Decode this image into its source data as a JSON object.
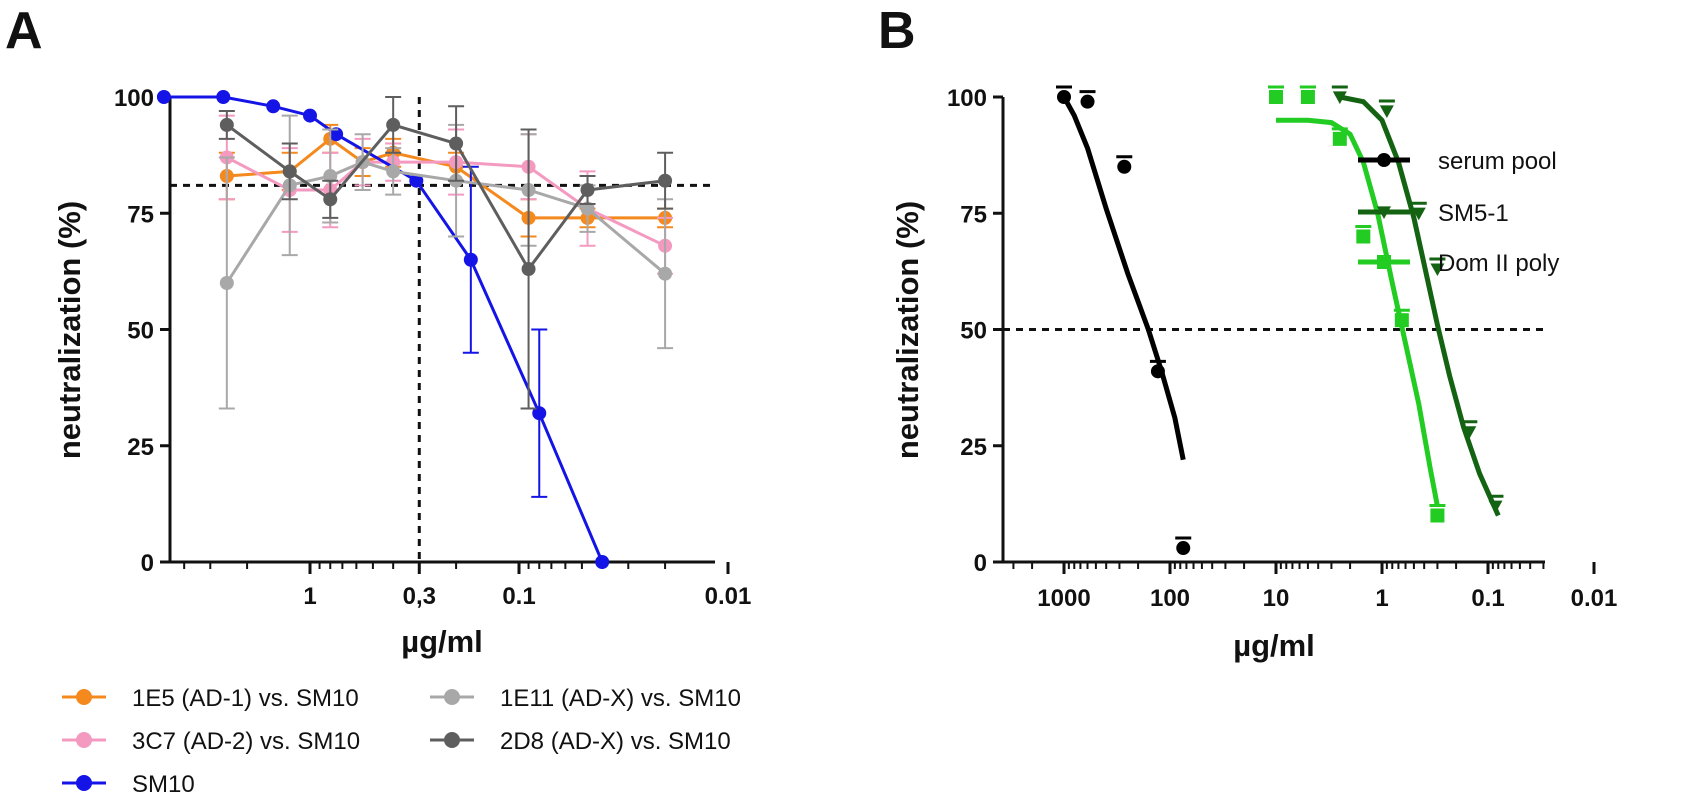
{
  "figure": {
    "panel_a_letter": "A",
    "panel_b_letter": "B"
  },
  "chart_data": [
    {
      "panel": "A",
      "type": "line",
      "xlabel": "µg/ml",
      "ylabel": "neutralization (%)",
      "x_scale": "log-reversed",
      "xlim": [
        10,
        0.01
      ],
      "ylim": [
        0,
        100
      ],
      "x_ticks": [
        {
          "value": 1,
          "label": "1"
        },
        {
          "value": 0.3,
          "label": "0,3"
        },
        {
          "value": 0.1,
          "label": "0.1"
        },
        {
          "value": 0.01,
          "label": "0.01"
        }
      ],
      "y_ticks": [
        {
          "value": 0,
          "label": "0"
        },
        {
          "value": 25,
          "label": "25"
        },
        {
          "value": 50,
          "label": "50"
        },
        {
          "value": 75,
          "label": "75"
        },
        {
          "value": 100,
          "label": "100"
        }
      ],
      "reference_lines": {
        "horizontal_y": 81,
        "vertical_x": 0.3
      },
      "series": [
        {
          "name": "1E5 (AD-1) vs. SM10",
          "color": "#f4891e",
          "x": [
            2.5,
            1.25,
            0.8,
            0.56,
            0.4,
            0.2,
            0.09,
            0.047,
            0.02
          ],
          "y": [
            83,
            84,
            91,
            86,
            88,
            85,
            74,
            74,
            74
          ],
          "err": [
            5,
            4,
            3,
            3,
            3,
            3,
            4,
            2,
            2
          ]
        },
        {
          "name": "3C7 (AD-2) vs. SM10",
          "color": "#f49ac1",
          "x": [
            2.5,
            1.25,
            0.8,
            0.56,
            0.4,
            0.2,
            0.09,
            0.047,
            0.02
          ],
          "y": [
            87,
            80,
            80,
            86,
            86,
            86,
            85,
            76,
            68
          ],
          "err": [
            9,
            9,
            8,
            5,
            4,
            7,
            7,
            8,
            6
          ]
        },
        {
          "name": "SM10",
          "color": "#1414e6",
          "x": [
            5,
            2.6,
            1.5,
            1.0,
            0.75,
            0.31,
            0.17,
            0.08,
            0.04
          ],
          "y": [
            100,
            100,
            98,
            96,
            92,
            82,
            65,
            32,
            0
          ],
          "err": [
            0,
            0,
            0,
            0,
            0,
            0,
            20,
            18,
            0
          ]
        },
        {
          "name": "1E11 (AD-X) vs. SM10",
          "color": "#a8a8a8",
          "x": [
            2.5,
            1.25,
            0.8,
            0.56,
            0.4,
            0.2,
            0.09,
            0.047,
            0.02
          ],
          "y": [
            60,
            81,
            83,
            86,
            84,
            82,
            80,
            76,
            62
          ],
          "err": [
            27,
            15,
            10,
            6,
            5,
            12,
            12,
            5,
            16
          ]
        },
        {
          "name": "2D8 (AD-X) vs. SM10",
          "color": "#5e5e5e",
          "x": [
            2.5,
            1.25,
            0.8,
            0.4,
            0.2,
            0.09,
            0.047,
            0.02
          ],
          "y": [
            94,
            84,
            78,
            94,
            90,
            63,
            80,
            82
          ],
          "err": [
            3,
            6,
            4,
            6,
            8,
            30,
            3,
            6
          ]
        }
      ],
      "legend": {
        "placement": "below-plot"
      }
    },
    {
      "panel": "B",
      "type": "scatter",
      "xlabel": "µg/ml",
      "ylabel": "neutralization (%)",
      "x_scale": "log-reversed",
      "xlim": [
        5000,
        0.01
      ],
      "ylim": [
        0,
        100
      ],
      "x_ticks": [
        {
          "value": 1000,
          "label": "1000"
        },
        {
          "value": 100,
          "label": "100"
        },
        {
          "value": 10,
          "label": "10"
        },
        {
          "value": 1,
          "label": "1"
        },
        {
          "value": 0.1,
          "label": "0.1"
        },
        {
          "value": 0.01,
          "label": "0.01"
        }
      ],
      "y_ticks": [
        {
          "value": 0,
          "label": "0"
        },
        {
          "value": 25,
          "label": "25"
        },
        {
          "value": 50,
          "label": "50"
        },
        {
          "value": 75,
          "label": "75"
        },
        {
          "value": 100,
          "label": "100"
        }
      ],
      "reference_lines": {
        "horizontal_y": 50
      },
      "series": [
        {
          "name": "serum pool",
          "color": "#000000",
          "marker": "circle",
          "points": [
            [
              1000,
              100
            ],
            [
              600,
              99
            ],
            [
              270,
              85
            ],
            [
              130,
              41
            ],
            [
              75,
              3
            ]
          ],
          "fit": [
            [
              1000,
              100
            ],
            [
              800,
              96
            ],
            [
              600,
              89
            ],
            [
              400,
              76
            ],
            [
              250,
              62
            ],
            [
              160,
              50
            ],
            [
              120,
              41
            ],
            [
              90,
              31
            ],
            [
              75,
              22
            ]
          ]
        },
        {
          "name": "SM5-1",
          "color": "#136313",
          "marker": "triangle-down",
          "points": [
            [
              10,
              100
            ],
            [
              5,
              100
            ],
            [
              2.5,
              100
            ],
            [
              0.9,
              97
            ],
            [
              0.45,
              75
            ],
            [
              0.3,
              63
            ],
            [
              0.15,
              28
            ],
            [
              0.085,
              12
            ]
          ],
          "fit": [
            [
              2.5,
              100
            ],
            [
              1.5,
              99
            ],
            [
              1.0,
              95
            ],
            [
              0.7,
              86
            ],
            [
              0.5,
              74
            ],
            [
              0.4,
              64
            ],
            [
              0.3,
              51
            ],
            [
              0.23,
              40
            ],
            [
              0.17,
              29
            ],
            [
              0.12,
              19
            ],
            [
              0.08,
              10
            ]
          ]
        },
        {
          "name": "Dom II poly",
          "color": "#22cc22",
          "marker": "square",
          "points": [
            [
              10,
              100
            ],
            [
              5,
              100
            ],
            [
              2.5,
              91
            ],
            [
              1.5,
              70
            ],
            [
              0.65,
              52
            ],
            [
              0.3,
              10
            ]
          ],
          "fit": [
            [
              10,
              95
            ],
            [
              5,
              95
            ],
            [
              3,
              94.5
            ],
            [
              2,
              92
            ],
            [
              1.5,
              86
            ],
            [
              1.1,
              75
            ],
            [
              0.8,
              60
            ],
            [
              0.6,
              47
            ],
            [
              0.45,
              34
            ],
            [
              0.35,
              20
            ],
            [
              0.3,
              12
            ]
          ]
        }
      ],
      "legend": {
        "placement": "top-right"
      }
    }
  ]
}
